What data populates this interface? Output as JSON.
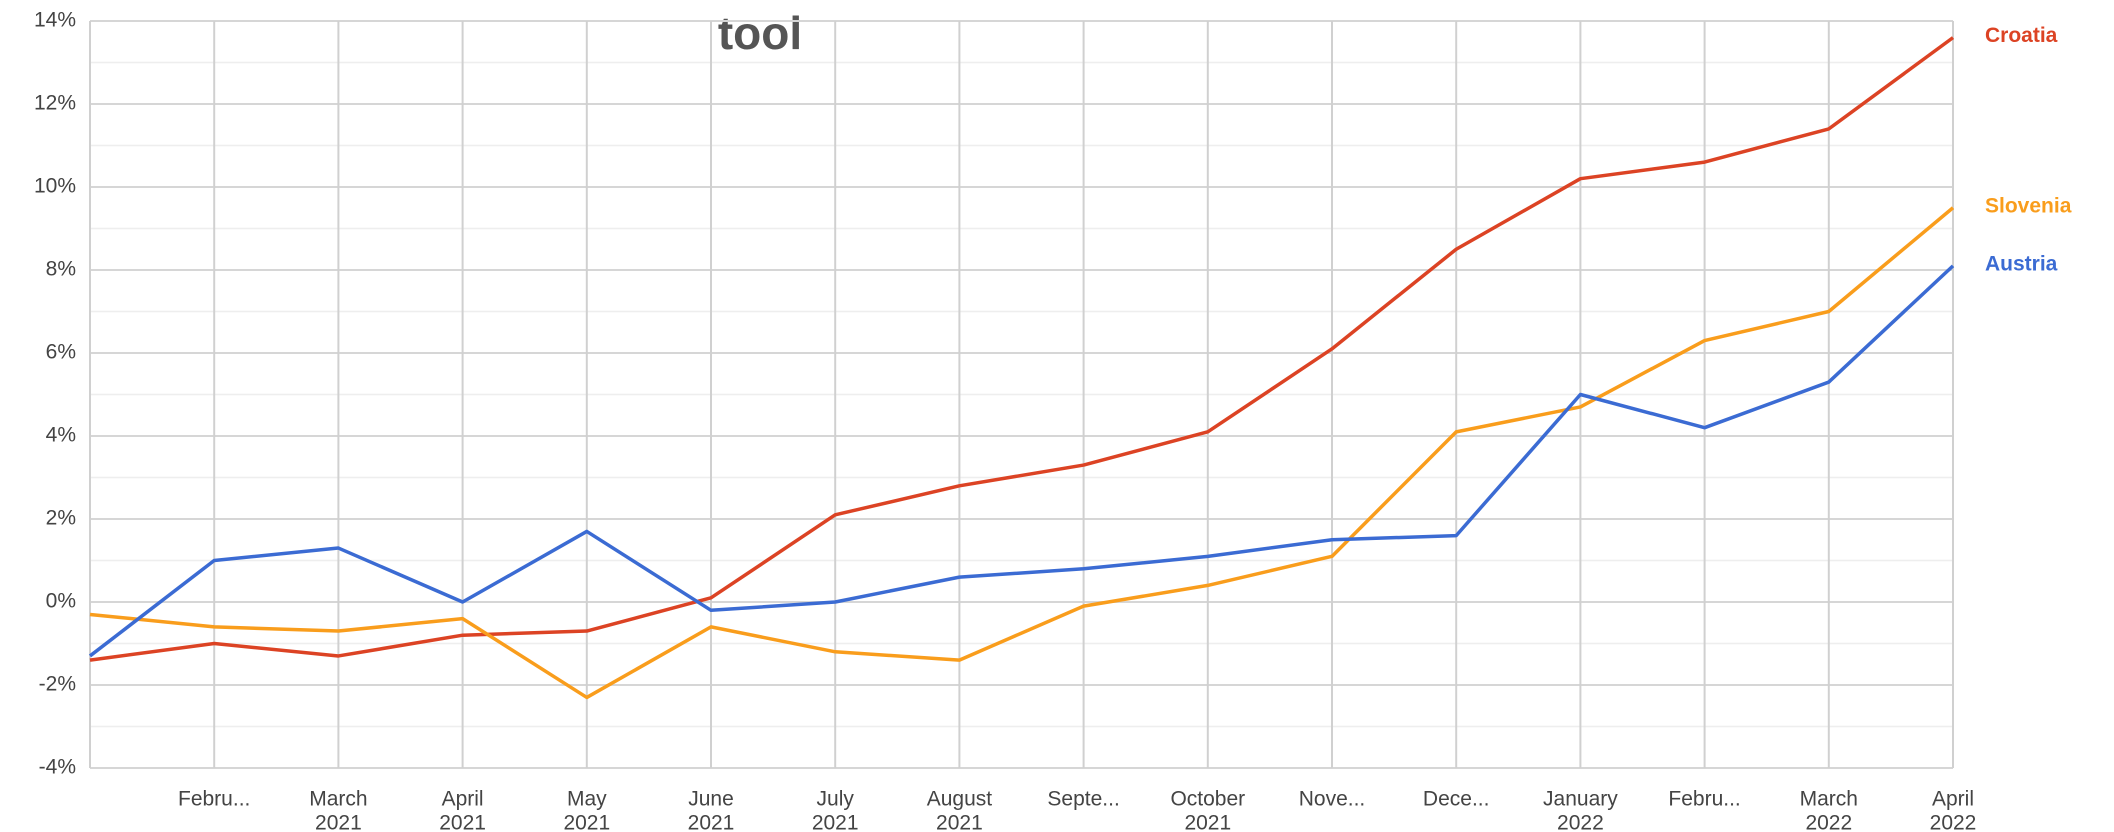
{
  "chart_data": {
    "type": "line",
    "title": "tool",
    "categories": [
      null,
      [
        "Febru..."
      ],
      [
        "March",
        "2021"
      ],
      [
        "April",
        "2021"
      ],
      [
        "May",
        "2021"
      ],
      [
        "June",
        "2021"
      ],
      [
        "July",
        "2021"
      ],
      [
        "August",
        "2021"
      ],
      [
        "Septe..."
      ],
      [
        "October",
        "2021"
      ],
      [
        "Nove..."
      ],
      [
        "Dece..."
      ],
      [
        "January",
        "2022"
      ],
      [
        "Febru..."
      ],
      [
        "March",
        "2022"
      ],
      [
        "April",
        "2022"
      ]
    ],
    "series": [
      {
        "name": "Croatia",
        "color": "#dc4324",
        "values": [
          -1.4,
          -1.0,
          -1.3,
          -0.8,
          -0.7,
          0.1,
          2.1,
          2.8,
          3.3,
          4.1,
          6.1,
          8.5,
          10.2,
          10.6,
          11.4,
          13.6
        ]
      },
      {
        "name": "Slovenia",
        "color": "#f99d1c",
        "values": [
          -0.3,
          -0.6,
          -0.7,
          -0.4,
          -2.3,
          -0.6,
          -1.2,
          -1.4,
          -0.1,
          0.4,
          1.1,
          4.1,
          4.7,
          6.3,
          7.0,
          9.5
        ]
      },
      {
        "name": "Austria",
        "color": "#3b6bd3",
        "values": [
          -1.3,
          1.0,
          1.3,
          0.0,
          1.7,
          -0.2,
          0.0,
          0.6,
          0.8,
          1.1,
          1.5,
          1.6,
          5.0,
          4.2,
          5.3,
          8.1
        ]
      }
    ],
    "ylim": [
      -4,
      14
    ],
    "yticks": [
      {
        "value": -4,
        "label": "-4%"
      },
      {
        "value": -2,
        "label": "-2%"
      },
      {
        "value": 0,
        "label": "0%"
      },
      {
        "value": 2,
        "label": "2%"
      },
      {
        "value": 4,
        "label": "4%"
      },
      {
        "value": 6,
        "label": "6%"
      },
      {
        "value": 8,
        "label": "8%"
      },
      {
        "value": 10,
        "label": "10%"
      },
      {
        "value": 12,
        "label": "12%"
      },
      {
        "value": 14,
        "label": "14%"
      }
    ],
    "grid": true
  }
}
